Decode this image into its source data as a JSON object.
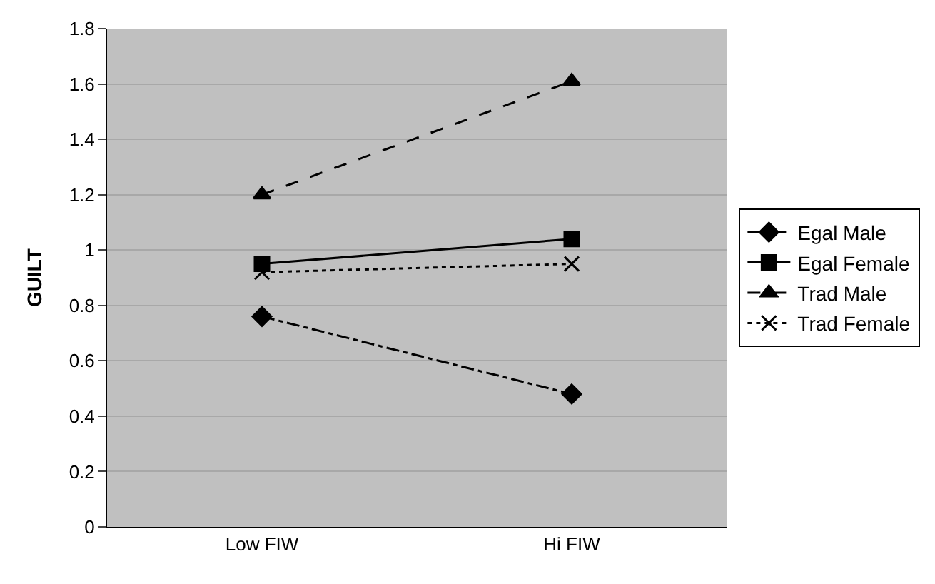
{
  "chart_data": {
    "type": "line",
    "ylabel": "GUILT",
    "categories": [
      "Low FIW",
      "Hi FIW"
    ],
    "series": [
      {
        "name": "Egal Male",
        "color": "#000000",
        "values": [
          0.76,
          0.48
        ],
        "marker": "diamond",
        "line_style": "dashdot"
      },
      {
        "name": "Egal Female",
        "color": "#000000",
        "values": [
          0.95,
          1.04
        ],
        "marker": "square",
        "line_style": "solid"
      },
      {
        "name": "Trad Male",
        "color": "#000000",
        "values": [
          1.2,
          1.61
        ],
        "marker": "triangle",
        "line_style": "dashed"
      },
      {
        "name": "Trad Female",
        "color": "#000000",
        "values": [
          0.92,
          0.95
        ],
        "marker": "cross",
        "line_style": "dotted"
      }
    ],
    "ylim": [
      0,
      1.8
    ],
    "yticks": [
      0,
      {
        "value": 0.2,
        "label": "0.2"
      },
      {
        "value": 0.4,
        "label": "0.4"
      },
      {
        "value": 0.6,
        "label": "0.6"
      },
      {
        "value": 0.8,
        "label": "0.8"
      },
      1,
      {
        "value": 1.2,
        "label": "1.2"
      },
      {
        "value": 1.4,
        "label": "1.4"
      },
      {
        "value": 1.6,
        "label": "1.6"
      },
      {
        "value": 1.8,
        "label": "1.8"
      }
    ],
    "grid": "y",
    "legend": "right"
  }
}
